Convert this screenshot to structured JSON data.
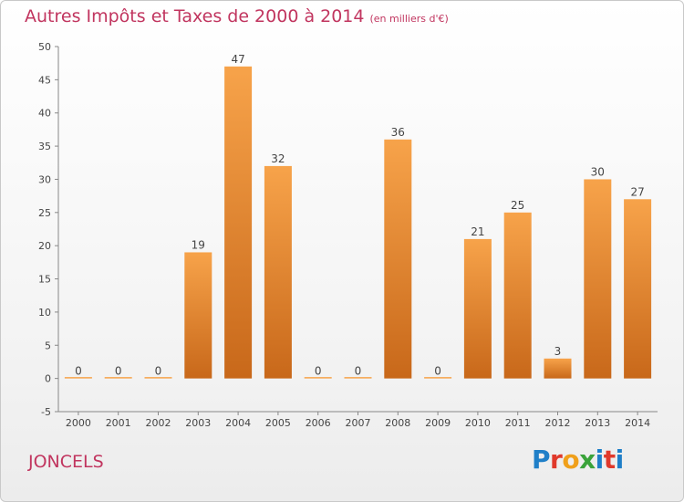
{
  "header": {
    "title": "Autres Impôts et Taxes de 2000 à 2014",
    "unit": "(en milliers d'€)"
  },
  "footer": {
    "commune": "JONCELS",
    "logo": "Proxiti"
  },
  "colors": {
    "title": "#c1355f",
    "bar_top": "#f7a34a",
    "bar_bottom": "#c8681a",
    "logo_blue": "#1f7fc8",
    "logo_red": "#e0392b",
    "logo_orange": "#f0a01b",
    "logo_green": "#3aa33a"
  },
  "chart_data": {
    "type": "bar",
    "categories": [
      "2000",
      "2001",
      "2002",
      "2003",
      "2004",
      "2005",
      "2006",
      "2007",
      "2008",
      "2009",
      "2010",
      "2011",
      "2012",
      "2013",
      "2014"
    ],
    "values": [
      0,
      0,
      0,
      19,
      47,
      32,
      0,
      0,
      36,
      0,
      21,
      25,
      3,
      30,
      27
    ],
    "data_labels": [
      "0",
      "0",
      "0",
      "19",
      "47",
      "32",
      "0",
      "0",
      "36",
      "0",
      "21",
      "25",
      "3",
      "30",
      "27"
    ],
    "ylim": [
      -5,
      50
    ],
    "yticks": [
      -5,
      0,
      5,
      10,
      15,
      20,
      25,
      30,
      35,
      40,
      45,
      50
    ],
    "grid": false,
    "legend": "none"
  }
}
